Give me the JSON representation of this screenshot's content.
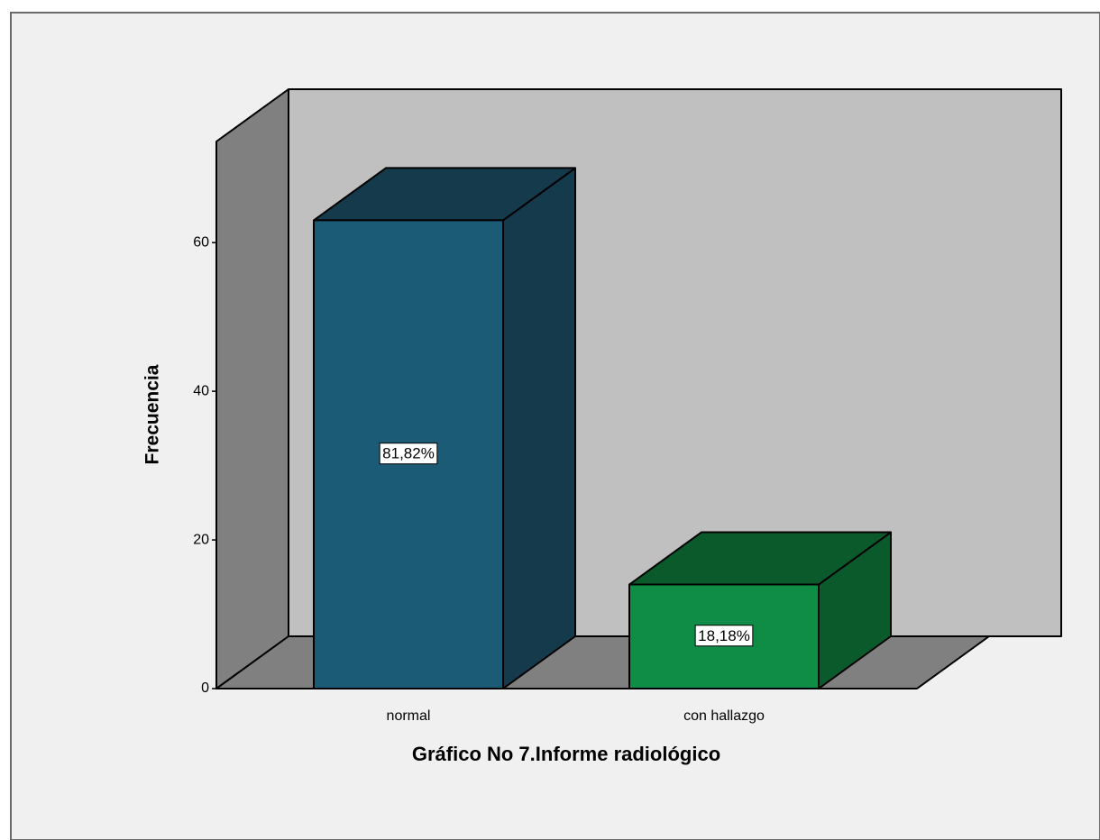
{
  "chart_data": {
    "type": "bar3d",
    "xlabel": "Gráfico No 7.Informe radiológico",
    "ylabel": "Frecuencia",
    "categories": [
      "normal",
      "con hallazgo"
    ],
    "values": [
      63,
      14
    ],
    "percent_labels": [
      "81,82%",
      "18,18%"
    ],
    "colors": [
      "#1c5b75",
      "#0f8c45"
    ],
    "top_colors": [
      "#143a4c",
      "#0b5a2c"
    ],
    "ylim": [
      0,
      73.6
    ],
    "yticks": [
      0,
      20,
      40,
      60
    ]
  }
}
